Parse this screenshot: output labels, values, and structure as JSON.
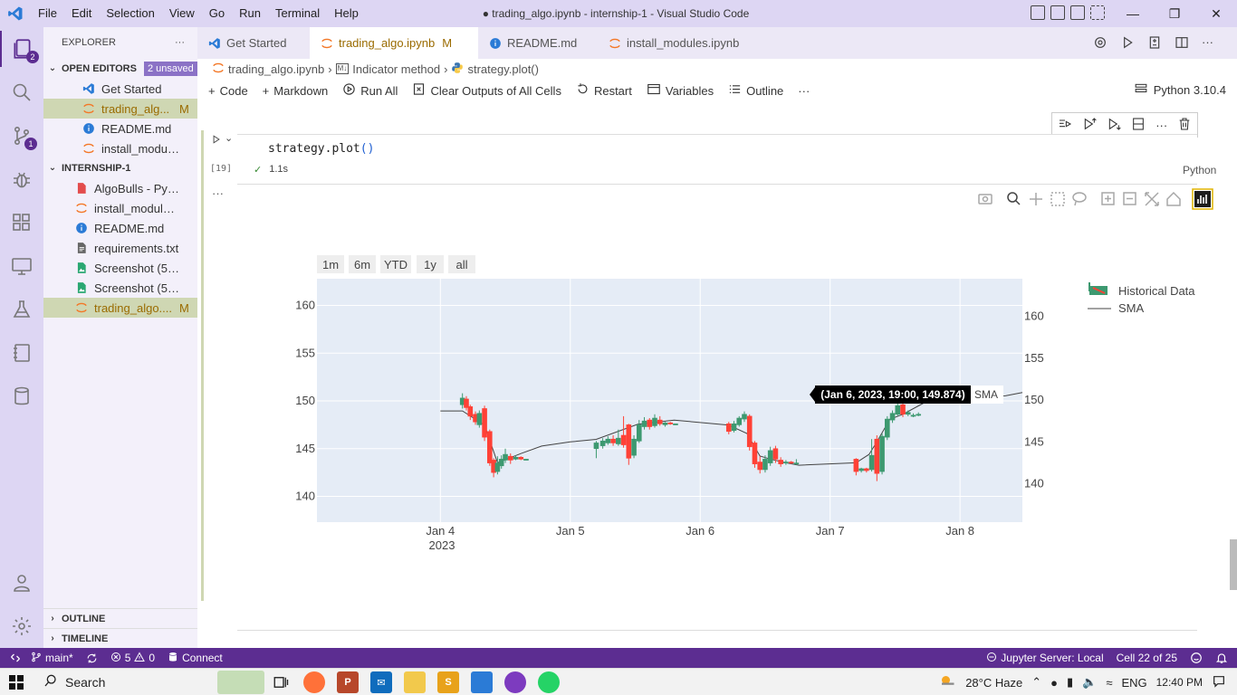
{
  "window": {
    "title": "● trading_algo.ipynb - internship-1 - Visual Studio Code",
    "menu": [
      "File",
      "Edit",
      "Selection",
      "View",
      "Go",
      "Run",
      "Terminal",
      "Help"
    ]
  },
  "activity": {
    "explorer_badge": "2",
    "scm_badge": "1"
  },
  "sidebar": {
    "header": "EXPLORER",
    "more": "···",
    "open_editors": {
      "title": "OPEN EDITORS",
      "badge": "2 unsaved",
      "items": [
        {
          "name": "Get Started",
          "mod": ""
        },
        {
          "name": "trading_alg...",
          "mod": "M"
        },
        {
          "name": "README.md",
          "mod": ""
        },
        {
          "name": "install_modules.i...",
          "mod": ""
        }
      ]
    },
    "workspace": {
      "title": "INTERNSHIP-1",
      "items": [
        {
          "name": "AlgoBulls - Pytho...",
          "mod": ""
        },
        {
          "name": "install_modules.ip...",
          "mod": ""
        },
        {
          "name": "README.md",
          "mod": ""
        },
        {
          "name": "requirements.txt",
          "mod": ""
        },
        {
          "name": "Screenshot (503)....",
          "mod": ""
        },
        {
          "name": "Screenshot (504)....",
          "mod": ""
        },
        {
          "name": "trading_algo....",
          "mod": "M"
        }
      ]
    },
    "outline": "OUTLINE",
    "timeline": "TIMELINE"
  },
  "tabs": [
    {
      "label": "Get Started",
      "mod": ""
    },
    {
      "label": "trading_algo.ipynb",
      "mod": "M"
    },
    {
      "label": "README.md",
      "mod": ""
    },
    {
      "label": "install_modules.ipynb",
      "mod": ""
    }
  ],
  "breadcrumb": [
    "trading_algo.ipynb",
    "Indicator method",
    "strategy.plot()"
  ],
  "toolbar": {
    "code": "Code",
    "markdown": "Markdown",
    "run_all": "Run All",
    "clear": "Clear Outputs of All Cells",
    "restart": "Restart",
    "variables": "Variables",
    "outline": "Outline",
    "more": "···",
    "kernel": "Python 3.10.4"
  },
  "cell": {
    "code_fn": "strategy.plot",
    "code_parens": "()",
    "exec_count": "[19]",
    "duration": "1.1s",
    "language": "Python",
    "output_more": "···"
  },
  "chart_data": {
    "type": "candlestick",
    "range_buttons": [
      "1m",
      "6m",
      "YTD",
      "1y",
      "all"
    ],
    "x_ticks": [
      "Jan 4",
      "Jan 5",
      "Jan 6",
      "Jan 7",
      "Jan 8"
    ],
    "x_year": "2023",
    "y_left_ticks": [
      140,
      145,
      150,
      155,
      160
    ],
    "y_right_ticks": [
      140,
      145,
      150,
      155,
      160
    ],
    "y_left_range": [
      137.3,
      162.8
    ],
    "y_right_range": [
      135.4,
      164.5
    ],
    "legend": [
      "Historical Data",
      "SMA"
    ],
    "tooltip": "(Jan 6, 2023, 19:00, 149.874)",
    "tooltip_series": "SMA",
    "colors": {
      "up": "#3d9970",
      "down": "#ff4136",
      "sma": "#444444",
      "bg": "#e5ecf6"
    },
    "candles": [
      {
        "x": 0.17,
        "o": 149.6,
        "c": 150.3,
        "h": 150.8,
        "l": 149.2
      },
      {
        "x": 0.2,
        "o": 150.2,
        "c": 149.3,
        "h": 150.5,
        "l": 149.0
      },
      {
        "x": 0.23,
        "o": 149.4,
        "c": 148.4,
        "h": 149.6,
        "l": 148.0
      },
      {
        "x": 0.27,
        "o": 148.6,
        "c": 147.8,
        "h": 148.9,
        "l": 147.5
      },
      {
        "x": 0.3,
        "o": 147.5,
        "c": 148.7,
        "h": 149.0,
        "l": 147.2
      },
      {
        "x": 0.34,
        "o": 149.2,
        "c": 146.2,
        "h": 149.5,
        "l": 145.8
      },
      {
        "x": 0.38,
        "o": 146.8,
        "c": 143.5,
        "h": 147.0,
        "l": 143.2
      },
      {
        "x": 0.41,
        "o": 143.8,
        "c": 142.5,
        "h": 144.0,
        "l": 142.0
      },
      {
        "x": 0.44,
        "o": 142.6,
        "c": 143.5,
        "h": 144.2,
        "l": 142.3
      },
      {
        "x": 0.47,
        "o": 143.2,
        "c": 143.9,
        "h": 144.3,
        "l": 142.9
      },
      {
        "x": 0.5,
        "o": 143.8,
        "c": 144.4,
        "h": 145.0,
        "l": 143.5
      },
      {
        "x": 0.54,
        "o": 144.2,
        "c": 143.8,
        "h": 144.5,
        "l": 143.4
      },
      {
        "x": 0.58,
        "o": 143.9,
        "c": 144.1,
        "h": 144.3,
        "l": 143.8
      },
      {
        "x": 0.62,
        "o": 144.1,
        "c": 143.9,
        "h": 144.2,
        "l": 143.8
      },
      {
        "x": 0.66,
        "o": 143.9,
        "c": 143.9,
        "h": 143.9,
        "l": 143.9
      },
      {
        "x": 1.2,
        "o": 145.0,
        "c": 145.6,
        "h": 145.8,
        "l": 144.0
      },
      {
        "x": 1.25,
        "o": 145.3,
        "c": 145.8,
        "h": 146.1,
        "l": 145.0
      },
      {
        "x": 1.29,
        "o": 145.6,
        "c": 146.0,
        "h": 146.3,
        "l": 145.4
      },
      {
        "x": 1.33,
        "o": 146.0,
        "c": 145.6,
        "h": 146.4,
        "l": 145.3
      },
      {
        "x": 1.37,
        "o": 145.5,
        "c": 146.1,
        "h": 147.0,
        "l": 145.3
      },
      {
        "x": 1.41,
        "o": 146.4,
        "c": 145.4,
        "h": 148.4,
        "l": 145.1
      },
      {
        "x": 1.45,
        "o": 147.5,
        "c": 144.0,
        "h": 147.6,
        "l": 143.3
      },
      {
        "x": 1.49,
        "o": 144.3,
        "c": 146.0,
        "h": 146.4,
        "l": 144.0
      },
      {
        "x": 1.53,
        "o": 145.8,
        "c": 147.5,
        "h": 148.0,
        "l": 145.6
      },
      {
        "x": 1.57,
        "o": 147.3,
        "c": 147.9,
        "h": 148.3,
        "l": 147.0
      },
      {
        "x": 1.61,
        "o": 148.0,
        "c": 147.3,
        "h": 148.2,
        "l": 147.0
      },
      {
        "x": 1.65,
        "o": 147.4,
        "c": 148.2,
        "h": 148.6,
        "l": 147.2
      },
      {
        "x": 1.69,
        "o": 148.0,
        "c": 147.6,
        "h": 148.4,
        "l": 147.4
      },
      {
        "x": 1.73,
        "o": 147.5,
        "c": 147.7,
        "h": 147.8,
        "l": 147.3
      },
      {
        "x": 1.77,
        "o": 147.7,
        "c": 147.6,
        "h": 147.8,
        "l": 147.5
      },
      {
        "x": 1.81,
        "o": 147.6,
        "c": 147.6,
        "h": 147.6,
        "l": 147.6
      },
      {
        "x": 2.22,
        "o": 147.6,
        "c": 146.8,
        "h": 147.8,
        "l": 146.5
      },
      {
        "x": 2.26,
        "o": 146.9,
        "c": 147.6,
        "h": 147.9,
        "l": 146.7
      },
      {
        "x": 2.3,
        "o": 147.5,
        "c": 148.2,
        "h": 148.4,
        "l": 147.3
      },
      {
        "x": 2.34,
        "o": 148.1,
        "c": 148.6,
        "h": 148.9,
        "l": 147.8
      },
      {
        "x": 2.38,
        "o": 148.4,
        "c": 145.2,
        "h": 148.6,
        "l": 144.8
      },
      {
        "x": 2.42,
        "o": 145.6,
        "c": 143.4,
        "h": 145.8,
        "l": 143.0
      },
      {
        "x": 2.46,
        "o": 143.6,
        "c": 142.8,
        "h": 144.2,
        "l": 142.4
      },
      {
        "x": 2.5,
        "o": 142.8,
        "c": 143.9,
        "h": 144.3,
        "l": 142.5
      },
      {
        "x": 2.54,
        "o": 143.5,
        "c": 144.8,
        "h": 145.2,
        "l": 143.2
      },
      {
        "x": 2.58,
        "o": 145.0,
        "c": 143.9,
        "h": 145.3,
        "l": 143.5
      },
      {
        "x": 2.62,
        "o": 143.8,
        "c": 143.4,
        "h": 144.1,
        "l": 143.1
      },
      {
        "x": 2.66,
        "o": 143.5,
        "c": 143.6,
        "h": 143.8,
        "l": 143.3
      },
      {
        "x": 2.7,
        "o": 143.6,
        "c": 143.5,
        "h": 143.7,
        "l": 143.4
      },
      {
        "x": 2.74,
        "o": 143.5,
        "c": 143.5,
        "h": 143.9,
        "l": 143.3
      },
      {
        "x": 3.2,
        "o": 143.9,
        "c": 142.6,
        "h": 144.0,
        "l": 142.2
      },
      {
        "x": 3.24,
        "o": 142.7,
        "c": 142.9,
        "h": 143.0,
        "l": 142.5
      },
      {
        "x": 3.28,
        "o": 142.9,
        "c": 142.7,
        "h": 143.0,
        "l": 142.5
      },
      {
        "x": 3.32,
        "o": 142.8,
        "c": 144.3,
        "h": 146.0,
        "l": 142.6
      },
      {
        "x": 3.36,
        "o": 146.0,
        "c": 142.4,
        "h": 146.4,
        "l": 141.6
      },
      {
        "x": 3.4,
        "o": 142.6,
        "c": 146.3,
        "h": 146.6,
        "l": 142.3
      },
      {
        "x": 3.44,
        "o": 146.2,
        "c": 148.1,
        "h": 148.4,
        "l": 145.9
      },
      {
        "x": 3.48,
        "o": 148.0,
        "c": 148.7,
        "h": 149.0,
        "l": 147.7
      },
      {
        "x": 3.52,
        "o": 148.6,
        "c": 149.5,
        "h": 149.8,
        "l": 148.4
      },
      {
        "x": 3.56,
        "o": 149.6,
        "c": 148.6,
        "h": 150.0,
        "l": 148.3
      },
      {
        "x": 3.6,
        "o": 148.6,
        "c": 148.8,
        "h": 149.0,
        "l": 148.4
      },
      {
        "x": 3.64,
        "o": 148.5,
        "c": 148.5,
        "h": 148.7,
        "l": 148.3
      },
      {
        "x": 3.68,
        "o": 148.5,
        "c": 148.6,
        "h": 148.8,
        "l": 148.4
      }
    ],
    "sma": [
      {
        "x": 0.0,
        "y": 148.7
      },
      {
        "x": 0.17,
        "y": 148.7
      },
      {
        "x": 0.34,
        "y": 147.0
      },
      {
        "x": 0.44,
        "y": 142.5
      },
      {
        "x": 0.62,
        "y": 143.6
      },
      {
        "x": 0.78,
        "y": 144.5
      },
      {
        "x": 1.0,
        "y": 145.0
      },
      {
        "x": 1.2,
        "y": 145.3
      },
      {
        "x": 1.52,
        "y": 147.1
      },
      {
        "x": 1.8,
        "y": 147.6
      },
      {
        "x": 2.22,
        "y": 147.0
      },
      {
        "x": 2.36,
        "y": 146.0
      },
      {
        "x": 2.46,
        "y": 143.3
      },
      {
        "x": 2.55,
        "y": 142.9
      },
      {
        "x": 2.66,
        "y": 142.5
      },
      {
        "x": 2.76,
        "y": 142.2
      },
      {
        "x": 3.2,
        "y": 142.5
      },
      {
        "x": 3.3,
        "y": 143.5
      },
      {
        "x": 3.36,
        "y": 145.0
      },
      {
        "x": 3.46,
        "y": 147.7
      },
      {
        "x": 3.56,
        "y": 148.3
      },
      {
        "x": 3.68,
        "y": 149.3
      },
      {
        "x": 3.8,
        "y": 150.3
      },
      {
        "x": 4.35,
        "y": 150.5
      },
      {
        "x": 4.48,
        "y": 150.9
      }
    ],
    "x_domain": [
      -0.95,
      4.48
    ]
  },
  "statusbar": {
    "branch": "main*",
    "errors": "5",
    "warnings": "0",
    "connect": "Connect",
    "jupyter": "Jupyter Server: Local",
    "cell_pos": "Cell 22 of 25"
  },
  "taskbar": {
    "search": "Search",
    "weather": "28°C  Haze",
    "lang": "ENG",
    "time": "12:40 PM"
  }
}
